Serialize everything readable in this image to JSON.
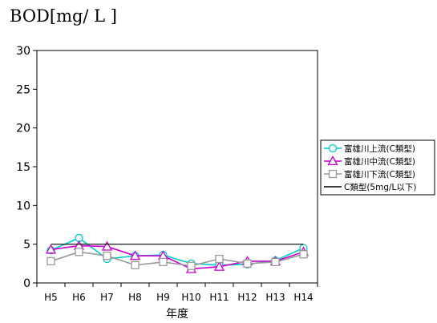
{
  "chart_data": {
    "type": "line",
    "title": "",
    "ylabel": "BOD[mg/ L ]",
    "xlabel": "年度",
    "categories": [
      "H5",
      "H6",
      "H7",
      "H8",
      "H9",
      "H10",
      "H11",
      "H12",
      "H13",
      "H14"
    ],
    "ylim": [
      0,
      30
    ],
    "yticks": [
      0,
      5,
      10,
      15,
      20,
      25,
      30
    ],
    "grid": false,
    "legend_position": "right",
    "series": [
      {
        "name": "富雄川上流(C類型)",
        "values": [
          4.2,
          5.8,
          3.1,
          3.5,
          3.6,
          2.5,
          2.3,
          2.4,
          2.9,
          4.5
        ],
        "color": "#00cccc",
        "marker": "circle"
      },
      {
        "name": "富雄川中流(C類型)",
        "values": [
          4.3,
          4.8,
          4.7,
          3.5,
          3.5,
          1.8,
          2.1,
          2.8,
          2.8,
          4.0
        ],
        "color": "#cc00cc",
        "marker": "triangle"
      },
      {
        "name": "富雄川下流(C類型)",
        "values": [
          2.8,
          4.0,
          3.5,
          2.3,
          2.7,
          2.2,
          3.1,
          2.5,
          2.7,
          3.7
        ],
        "color": "#999999",
        "marker": "square"
      },
      {
        "name": "C類型(5mg/L以下)",
        "values": [
          5,
          5,
          5,
          5,
          5,
          5,
          5,
          5,
          5,
          5
        ],
        "color": "#000000",
        "marker": "none"
      }
    ]
  }
}
